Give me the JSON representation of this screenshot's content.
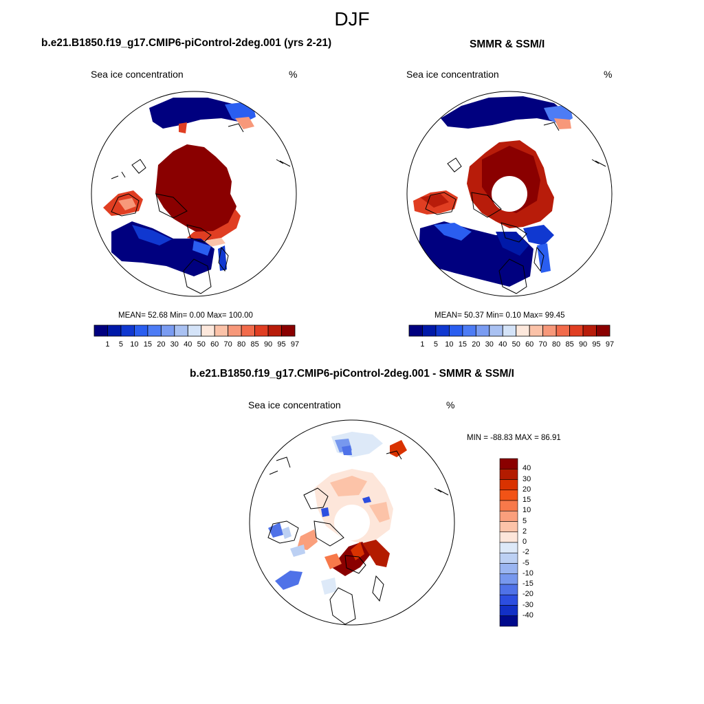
{
  "title": "DJF",
  "panels": [
    {
      "title": "b.e21.B1850.f19_g17.CMIP6-piControl-2deg.001 (yrs 2-21)",
      "variable": "Sea ice concentration",
      "units": "%",
      "stats": "MEAN=  52.68  Min=   0.00  Max= 100.00"
    },
    {
      "title": "SMMR & SSM/I",
      "variable": "Sea ice concentration",
      "units": "%",
      "stats": "MEAN=  50.37  Min=   0.10  Max=  99.45"
    },
    {
      "title": "b.e21.B1850.f19_g17.CMIP6-piControl-2deg.001 - SMMR & SSM/I",
      "variable": "Sea ice concentration",
      "units": "%",
      "stats": "MIN = -88.83 MAX =  86.91"
    }
  ],
  "colorbar_conc": {
    "labels": [
      "1",
      "5",
      "10",
      "15",
      "20",
      "30",
      "40",
      "50",
      "60",
      "70",
      "80",
      "85",
      "90",
      "95",
      "97"
    ],
    "colors": [
      "#00007f",
      "#0019a8",
      "#1038d0",
      "#2a5ef0",
      "#4d7cf5",
      "#7a9cf2",
      "#a9c1f2",
      "#d4e3f8",
      "#fde8dc",
      "#fbc2a8",
      "#f7987a",
      "#f26b4b",
      "#e03e22",
      "#b81c0a",
      "#8a0000"
    ]
  },
  "colorbar_diff": {
    "labels": [
      "40",
      "30",
      "20",
      "15",
      "10",
      "5",
      "2",
      "0",
      "-2",
      "-5",
      "-10",
      "-15",
      "-20",
      "-30",
      "-40"
    ],
    "colors": [
      "#8a0000",
      "#b31b00",
      "#d93200",
      "#f25316",
      "#f7794a",
      "#fa9f7c",
      "#fcc3a8",
      "#fde6da",
      "#dde9f8",
      "#bcd0f3",
      "#9ab5f1",
      "#7798ee",
      "#4f72e8",
      "#2c4ee0",
      "#1230c6",
      "#000a8c"
    ]
  },
  "maps": [
    {
      "name": "model",
      "palette": "conc",
      "has_pole_hole": false
    },
    {
      "name": "obs",
      "palette": "conc",
      "has_pole_hole": true
    },
    {
      "name": "diff",
      "palette": "diff",
      "has_pole_hole": true
    }
  ]
}
